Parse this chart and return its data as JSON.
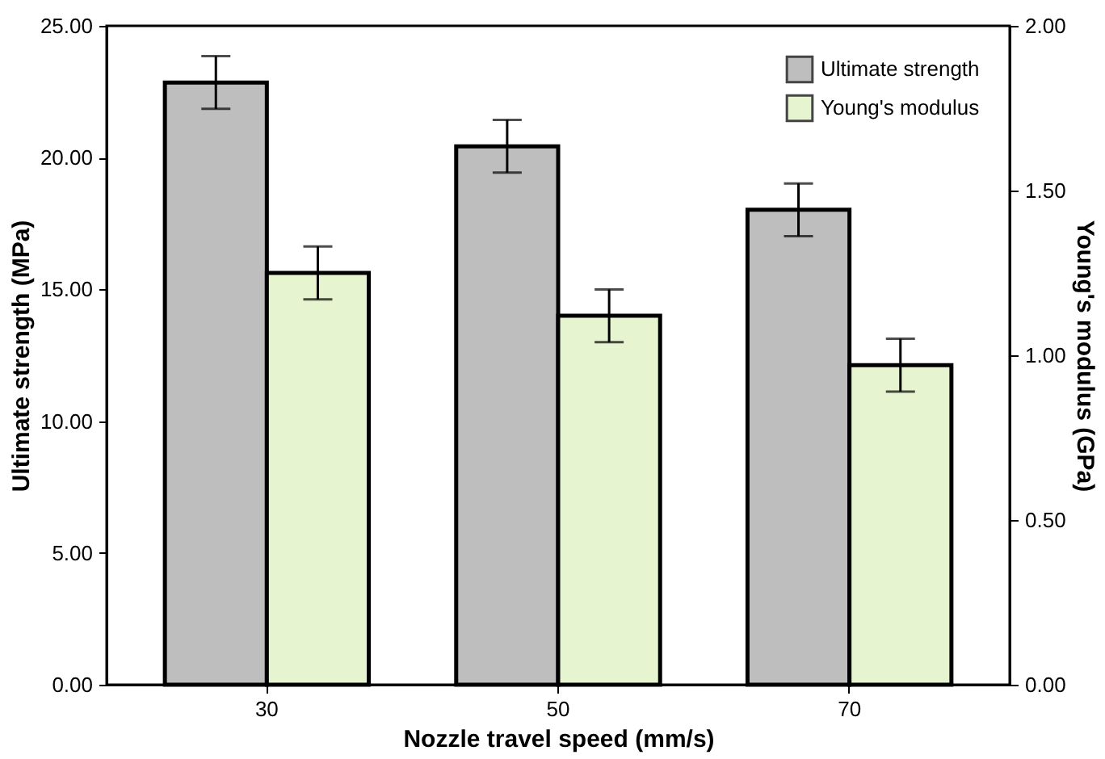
{
  "chart_data": {
    "type": "bar",
    "xlabel": "Nozzle travel speed (mm/s)",
    "ylabel": "Ultimate strength (MPa)",
    "y2label": "Young's modulus (GPa)",
    "categories": [
      "30",
      "50",
      "70"
    ],
    "series": [
      {
        "name": "Ultimate strength",
        "color": "#bebebe",
        "values": [
          22.85,
          20.43,
          18.02
        ],
        "errors": [
          1.0,
          1.0,
          1.0
        ]
      },
      {
        "name": "Young's modulus",
        "color": "#e6f5cf",
        "values": [
          1.25,
          1.12,
          0.97
        ],
        "errors": [
          0.08,
          0.08,
          0.08
        ],
        "axis": "y2"
      }
    ],
    "ylim": [
      0,
      25
    ],
    "yticks": [
      {
        "value": 0,
        "label": "0.00"
      },
      {
        "value": 5,
        "label": "5.00"
      },
      {
        "value": 10,
        "label": "10.00"
      },
      {
        "value": 15,
        "label": "15.00"
      },
      {
        "value": 20,
        "label": "20.00"
      },
      {
        "value": 25,
        "label": "25.00"
      }
    ],
    "y2lim": [
      0,
      2
    ],
    "y2ticks": [
      {
        "value": 0,
        "label": "0.00"
      },
      {
        "value": 0.5,
        "label": "0.50"
      },
      {
        "value": 1,
        "label": "1.00"
      },
      {
        "value": 1.5,
        "label": "1.50"
      },
      {
        "value": 2,
        "label": "2.00"
      }
    ],
    "legend": "top right",
    "grid": false
  }
}
